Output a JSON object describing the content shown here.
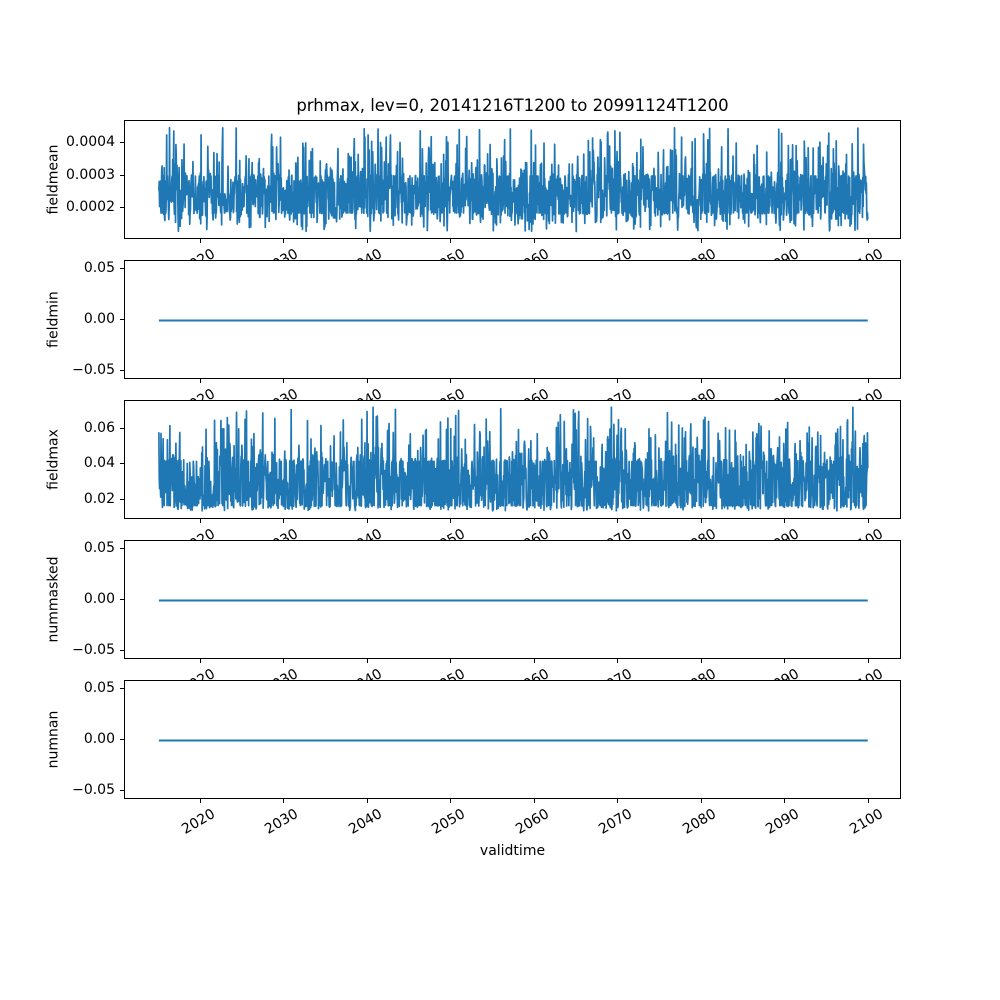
{
  "figure": {
    "title": "prhmax, lev=0, 20141216T1200 to 20991124T1200",
    "xlabel": "validtime",
    "line_color": "#1f77b4",
    "spine_color": "#000000",
    "background_color": "#ffffff"
  },
  "chart_data": {
    "type": "line",
    "title": "prhmax, lev=0, 20141216T1200 to 20991124T1200",
    "xlabel": "validtime",
    "legend": "none",
    "grid": false,
    "x_axis": {
      "lim": [
        2010.9,
        2104.0
      ],
      "ticks": [
        2020,
        2030,
        2040,
        2050,
        2060,
        2070,
        2080,
        2090,
        2100
      ],
      "tick_labels": [
        "2020",
        "2030",
        "2040",
        "2050",
        "2060",
        "2070",
        "2080",
        "2090",
        "2100"
      ],
      "tick_rotation_deg": 30,
      "data_start": 2014.96,
      "data_end": 2099.9
    },
    "subplots": [
      {
        "ylabel": "fieldmean",
        "ylim": [
          0.000102,
          0.000471
        ],
        "ytick_values": [
          0.0004,
          0.0003,
          0.0002
        ],
        "ytick_labels": [
          "0.0004",
          "0.0003",
          "0.0002"
        ],
        "series": {
          "kind": "noise",
          "seed": 42,
          "n": 2000,
          "base_min": 0.000186,
          "base_max": 0.0003,
          "spike_up_prob": 0.22,
          "spike_up_max": 0.000452,
          "spike_down_prob": 0.2,
          "spike_down_min": 0.000128,
          "spike_exp": 3,
          "approx_mean": 0.00025
        }
      },
      {
        "ylabel": "fieldmin",
        "ylim": [
          -0.0585,
          0.0585
        ],
        "ytick_values": [
          0.05,
          0.0,
          -0.05
        ],
        "ytick_labels": [
          "0.05",
          "0.00",
          "−0.05"
        ],
        "series": {
          "kind": "flat",
          "value": 0.0
        }
      },
      {
        "ylabel": "fieldmax",
        "ylim": [
          0.0094,
          0.0756
        ],
        "ytick_values": [
          0.06,
          0.04,
          0.02
        ],
        "ytick_labels": [
          "0.06",
          "0.04",
          "0.02"
        ],
        "series": {
          "kind": "noise",
          "seed": 1337,
          "n": 2000,
          "base_min": 0.0175,
          "base_max": 0.042,
          "spike_up_prob": 0.22,
          "spike_up_max": 0.0725,
          "spike_down_prob": 0.2,
          "spike_down_min": 0.0145,
          "spike_exp": 3,
          "approx_mean": 0.03
        }
      },
      {
        "ylabel": "nummasked",
        "ylim": [
          -0.0585,
          0.0585
        ],
        "ytick_values": [
          0.05,
          0.0,
          -0.05
        ],
        "ytick_labels": [
          "0.05",
          "0.00",
          "−0.05"
        ],
        "series": {
          "kind": "flat",
          "value": 0.0
        }
      },
      {
        "ylabel": "numnan",
        "ylim": [
          -0.0585,
          0.0585
        ],
        "ytick_values": [
          0.05,
          0.0,
          -0.05
        ],
        "ytick_labels": [
          "0.05",
          "0.00",
          "−0.05"
        ],
        "series": {
          "kind": "flat",
          "value": 0.0
        }
      }
    ]
  }
}
